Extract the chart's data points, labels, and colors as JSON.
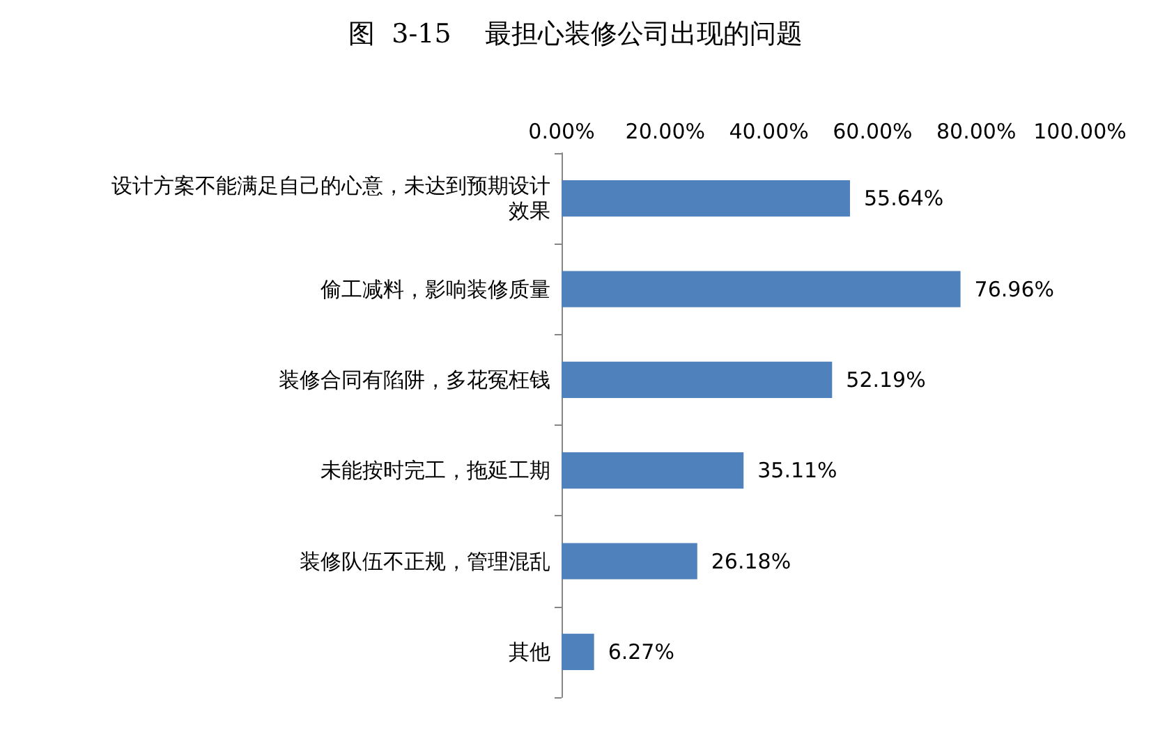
{
  "chart_data": {
    "type": "bar",
    "orientation": "horizontal",
    "title": "图  3-15    最担心装修公司出现的问题",
    "categories": [
      "设计方案不能满足自己的心意，未达到预期设计效果",
      "偷工减料，影响装修质量",
      "装修合同有陷阱，多花冤枉钱",
      "未能按时完工，拖延工期",
      "装修队伍不正规，管理混乱",
      "其他"
    ],
    "values": [
      55.64,
      76.96,
      52.19,
      35.11,
      26.18,
      6.27
    ],
    "value_labels": [
      "55.64%",
      "76.96%",
      "52.19%",
      "35.11%",
      "26.18%",
      "6.27%"
    ],
    "color": "#4f81bd",
    "xlim": [
      0,
      100
    ],
    "xticks": [
      {
        "value": 0,
        "label": "0.00%"
      },
      {
        "value": 20,
        "label": "20.00%"
      },
      {
        "value": 40,
        "label": "40.00%"
      },
      {
        "value": 60,
        "label": "60.00%"
      },
      {
        "value": 80,
        "label": "80.00%"
      },
      {
        "value": 100,
        "label": "100.00%"
      }
    ],
    "grid": false
  }
}
